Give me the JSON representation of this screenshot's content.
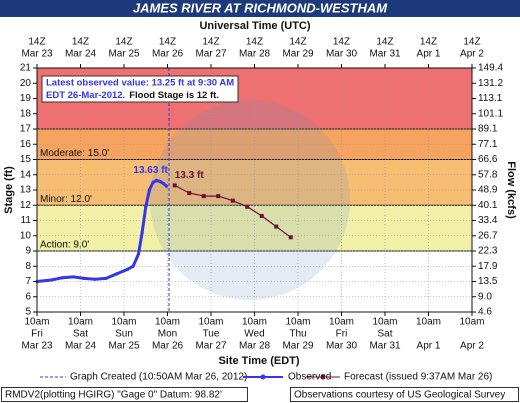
{
  "chart_data": {
    "type": "line",
    "title": "JAMES RIVER AT RICHMOND-WESTHAM",
    "x2_label": "Universal Time (UTC)",
    "x_label": "Site Time (EDT)",
    "y_label": "Stage (ft)",
    "y2_label": "Flow (kcfs)",
    "grid": true,
    "xlim": [
      "2012-03-23T10:00-04:00",
      "2012-04-02T10:00-04:00"
    ],
    "ylim": [
      5,
      21
    ],
    "yticks": [
      5,
      6,
      7,
      8,
      9,
      10,
      11,
      12,
      13,
      14,
      15,
      16,
      17,
      18,
      19,
      20,
      21
    ],
    "y2ticks": [
      4.6,
      {
        "value": 9,
        "label": "9.0"
      },
      13.5,
      17.9,
      22.3,
      26.7,
      33.4,
      40.1,
      48.9,
      57.8,
      66.6,
      77.1,
      89.1,
      101.1,
      113.1,
      131.2,
      149.4
    ],
    "xticks": [
      {
        "value": "2012-03-23T10:00-04:00",
        "label": [
          "10am",
          "Fri",
          "Mar 23"
        ]
      },
      {
        "value": "2012-03-24T10:00-04:00",
        "label": [
          "10am",
          "Sat",
          "Mar 24"
        ]
      },
      {
        "value": "2012-03-25T10:00-04:00",
        "label": [
          "10am",
          "Sun",
          "Mar 25"
        ]
      },
      {
        "value": "2012-03-26T10:00-04:00",
        "label": [
          "10am",
          "Mon",
          "Mar 26"
        ]
      },
      {
        "value": "2012-03-27T10:00-04:00",
        "label": [
          "10am",
          "Tue",
          "Mar 27"
        ]
      },
      {
        "value": "2012-03-28T10:00-04:00",
        "label": [
          "10am",
          "Wed",
          "Mar 28"
        ]
      },
      {
        "value": "2012-03-29T10:00-04:00",
        "label": [
          "10am",
          "Thu",
          "Mar 29"
        ]
      },
      {
        "value": "2012-03-30T10:00-04:00",
        "label": [
          "10am",
          "Fri",
          "Mar 30"
        ]
      },
      {
        "value": "2012-03-31T10:00-04:00",
        "label": [
          "10am",
          "Sat",
          "Mar 31"
        ]
      },
      {
        "value": "2012-04-01T10:00-04:00",
        "label": [
          "10am",
          null,
          "Apr 1"
        ]
      },
      {
        "value": "2012-04-02T10:00-04:00",
        "label": [
          "10am",
          null,
          "Apr 2"
        ]
      }
    ],
    "x2ticks": [
      {
        "value": "2012-03-23T14:00Z",
        "label": [
          "14Z",
          "Mar 23"
        ]
      },
      {
        "value": "2012-03-24T14:00Z",
        "label": [
          "14Z",
          "Mar 24"
        ]
      },
      {
        "value": "2012-03-25T14:00Z",
        "label": [
          "14Z",
          "Mar 25"
        ]
      },
      {
        "value": "2012-03-26T14:00Z",
        "label": [
          "14Z",
          "Mar 26"
        ]
      },
      {
        "value": "2012-03-27T14:00Z",
        "label": [
          "14Z",
          "Mar 27"
        ]
      },
      {
        "value": "2012-03-28T14:00Z",
        "label": [
          "14Z",
          "Mar 28"
        ]
      },
      {
        "value": "2012-03-29T14:00Z",
        "label": [
          "14Z",
          "Mar 29"
        ]
      },
      {
        "value": "2012-03-30T14:00Z",
        "label": [
          "14Z",
          "Mar 30"
        ]
      },
      {
        "value": "2012-03-31T14:00Z",
        "label": [
          "14Z",
          "Mar 31"
        ]
      },
      {
        "value": "2012-04-01T14:00Z",
        "label": [
          "14Z",
          "Apr 1"
        ]
      },
      {
        "value": "2012-04-02T14:00Z",
        "label": [
          "14Z",
          "Apr 2"
        ]
      }
    ],
    "flood_categories": [
      {
        "label": "Action: 9.0'",
        "value": 9,
        "color": "#f1f0a6"
      },
      {
        "label": "Minor: 12.0'",
        "value": 12,
        "color": "#f7bd72"
      },
      {
        "label": "Moderate: 15.0'",
        "value": 15,
        "color": "#f5a35e"
      },
      {
        "value": 17,
        "color": "#ef7070"
      }
    ],
    "series": [
      {
        "name": "Observed",
        "color": "#3535ee",
        "x": [
          "2012-03-23T10:00-04:00",
          "2012-03-23T18:00-04:00",
          "2012-03-24T00:00-04:00",
          "2012-03-24T06:00-04:00",
          "2012-03-24T12:00-04:00",
          "2012-03-24T18:00-04:00",
          "2012-03-25T00:00-04:00",
          "2012-03-25T06:00-04:00",
          "2012-03-25T12:00-04:00",
          "2012-03-25T15:00-04:00",
          "2012-03-25T18:00-04:00",
          "2012-03-25T20:00-04:00",
          "2012-03-25T22:00-04:00",
          "2012-03-26T00:00-04:00",
          "2012-03-26T02:00-04:00",
          "2012-03-26T04:00-04:00",
          "2012-03-26T06:00-04:00",
          "2012-03-26T08:00-04:00",
          "2012-03-26T09:30-04:00"
        ],
        "values": [
          7.0,
          7.1,
          7.25,
          7.3,
          7.2,
          7.15,
          7.2,
          7.5,
          7.8,
          8.0,
          8.8,
          10.2,
          11.9,
          13.0,
          13.5,
          13.63,
          13.55,
          13.4,
          13.25
        ],
        "value_labels": [
          null,
          null,
          null,
          null,
          null,
          null,
          null,
          null,
          null,
          null,
          null,
          null,
          null,
          null,
          null,
          "13.63 ft",
          null,
          null,
          null
        ]
      },
      {
        "name": "Forecast (issued 9:37AM Mar 26)",
        "color": "#6e1030",
        "x": [
          "2012-03-26T14:00-04:00",
          "2012-03-26T22:00-04:00",
          "2012-03-27T06:00-04:00",
          "2012-03-27T14:00-04:00",
          "2012-03-27T22:00-04:00",
          "2012-03-28T06:00-04:00",
          "2012-03-28T14:00-04:00",
          "2012-03-28T22:00-04:00",
          "2012-03-29T06:00-04:00"
        ],
        "values": [
          13.3,
          12.8,
          12.6,
          12.6,
          12.3,
          11.9,
          11.3,
          10.6,
          9.9
        ],
        "value_labels": [
          "13.3 ft",
          null,
          null,
          null,
          null,
          null,
          null,
          null,
          null
        ]
      }
    ],
    "graph_created": {
      "label": "Graph Created (10:50AM Mar 26, 2012)",
      "x": "2012-03-26T10:50-04:00",
      "color": "#3535ee"
    },
    "annotation": {
      "lines": [
        "Latest observed value: 13.25 ft at 9:30 AM",
        "EDT 26-Mar-2012."
      ],
      "flood_stage": "Flood Stage is 12 ft."
    },
    "footer": {
      "left": "RMDV2(plotting HGIRG) \"Gage 0\" Datum: 98.82'",
      "right": "Observations courtesy of US Geological Survey"
    }
  }
}
